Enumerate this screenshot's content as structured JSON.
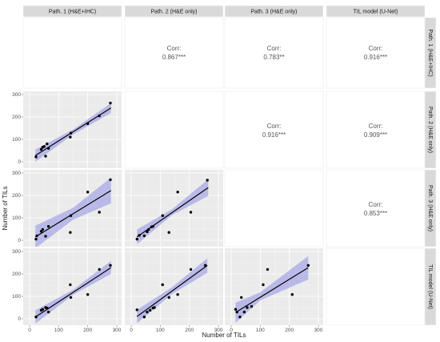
{
  "labels": [
    "Path. 1 (H&E+IHC)",
    "Path. 2 (H&E only)",
    "Path. 3 (H&E only)",
    "TIL model (U-Net)"
  ],
  "axis": {
    "xlabel": "Number of TILs",
    "ylabel": "Number of TILs",
    "xticks": [
      0,
      100,
      200,
      300
    ],
    "yticks": [
      0,
      100,
      200,
      300
    ],
    "range": [
      0,
      300
    ]
  },
  "corr_label": "Corr:",
  "colors": {
    "band": "#8f8fe6",
    "panel": "#ebebeb",
    "strip": "#d9d9d9"
  },
  "chart_data": {
    "type": "scatter",
    "title": "",
    "xlabel": "Number of TILs",
    "ylabel": "Number of TILs",
    "xlim": [
      0,
      300
    ],
    "ylim": [
      0,
      300
    ],
    "grid": true,
    "correlations": [
      {
        "row": "Path. 1 (H&E+IHC)",
        "col": "Path. 2 (H&E only)",
        "text": "0.867***"
      },
      {
        "row": "Path. 1 (H&E+IHC)",
        "col": "Path. 3 (H&E only)",
        "text": "0.783**"
      },
      {
        "row": "Path. 1 (H&E+IHC)",
        "col": "TIL model (U-Net)",
        "text": "0.916***"
      },
      {
        "row": "Path. 2 (H&E only)",
        "col": "Path. 3 (H&E only)",
        "text": "0.916***"
      },
      {
        "row": "Path. 2 (H&E only)",
        "col": "TIL model (U-Net)",
        "text": "0.909***"
      },
      {
        "row": "Path. 3 (H&E only)",
        "col": "TIL model (U-Net)",
        "text": "0.853***"
      }
    ],
    "panels": [
      {
        "x_var": "Path. 1 (H&E+IHC)",
        "y_var": "Path. 2 (H&E only)",
        "points": [
          [
            22,
            22
          ],
          [
            40,
            55
          ],
          [
            45,
            65
          ],
          [
            50,
            68
          ],
          [
            55,
            25
          ],
          [
            60,
            80
          ],
          [
            65,
            60
          ],
          [
            140,
            110
          ],
          [
            142,
            128
          ],
          [
            200,
            170
          ],
          [
            240,
            205
          ],
          [
            278,
            262
          ]
        ],
        "fit": [
          [
            20,
            28
          ],
          [
            280,
            240
          ]
        ],
        "band": [
          [
            20,
            0,
            55
          ],
          [
            150,
            122,
            144
          ],
          [
            280,
            218,
            262
          ]
        ]
      },
      {
        "x_var": "Path. 1 (H&E+IHC)",
        "y_var": "Path. 3 (H&E only)",
        "points": [
          [
            22,
            5
          ],
          [
            25,
            20
          ],
          [
            40,
            40
          ],
          [
            45,
            48
          ],
          [
            55,
            18
          ],
          [
            65,
            62
          ],
          [
            140,
            35
          ],
          [
            142,
            110
          ],
          [
            200,
            215
          ],
          [
            240,
            125
          ],
          [
            278,
            270
          ]
        ],
        "fit": [
          [
            20,
            15
          ],
          [
            280,
            222
          ]
        ],
        "band": [
          [
            20,
            -35,
            65
          ],
          [
            150,
            92,
            145
          ],
          [
            280,
            165,
            280
          ]
        ]
      },
      {
        "x_var": "Path. 2 (H&E only)",
        "y_var": "Path. 3 (H&E only)",
        "points": [
          [
            20,
            5
          ],
          [
            28,
            22
          ],
          [
            45,
            20
          ],
          [
            55,
            38
          ],
          [
            60,
            48
          ],
          [
            70,
            60
          ],
          [
            75,
            62
          ],
          [
            108,
            110
          ],
          [
            130,
            35
          ],
          [
            160,
            215
          ],
          [
            205,
            125
          ],
          [
            262,
            268
          ]
        ],
        "fit": [
          [
            20,
            15
          ],
          [
            265,
            235
          ]
        ],
        "band": [
          [
            20,
            -18,
            48
          ],
          [
            140,
            112,
            138
          ],
          [
            265,
            198,
            272
          ]
        ]
      },
      {
        "x_var": "Path. 1 (H&E+IHC)",
        "y_var": "TIL model (U-Net)",
        "points": [
          [
            22,
            8
          ],
          [
            40,
            38
          ],
          [
            45,
            42
          ],
          [
            55,
            50
          ],
          [
            60,
            48
          ],
          [
            65,
            30
          ],
          [
            140,
            152
          ],
          [
            142,
            95
          ],
          [
            200,
            108
          ],
          [
            240,
            220
          ],
          [
            278,
            238
          ]
        ],
        "fit": [
          [
            20,
            8
          ],
          [
            280,
            228
          ]
        ],
        "band": [
          [
            20,
            -22,
            38
          ],
          [
            150,
            107,
            130
          ],
          [
            280,
            200,
            258
          ]
        ]
      },
      {
        "x_var": "Path. 2 (H&E only)",
        "y_var": "TIL model (U-Net)",
        "points": [
          [
            20,
            40
          ],
          [
            45,
            8
          ],
          [
            55,
            30
          ],
          [
            65,
            38
          ],
          [
            75,
            48
          ],
          [
            80,
            50
          ],
          [
            108,
            152
          ],
          [
            130,
            95
          ],
          [
            160,
            108
          ],
          [
            205,
            220
          ],
          [
            255,
            238
          ]
        ],
        "fit": [
          [
            20,
            10
          ],
          [
            262,
            238
          ]
        ],
        "band": [
          [
            20,
            -20,
            40
          ],
          [
            140,
            110,
            140
          ],
          [
            262,
            205,
            270
          ]
        ]
      },
      {
        "x_var": "Path. 3 (H&E only)",
        "y_var": "TIL model (U-Net)",
        "points": [
          [
            15,
            42
          ],
          [
            20,
            30
          ],
          [
            30,
            8
          ],
          [
            35,
            95
          ],
          [
            45,
            30
          ],
          [
            55,
            50
          ],
          [
            70,
            55
          ],
          [
            110,
            152
          ],
          [
            125,
            220
          ],
          [
            210,
            108
          ],
          [
            265,
            238
          ]
        ],
        "fit": [
          [
            15,
            28
          ],
          [
            265,
            228
          ]
        ],
        "band": [
          [
            15,
            -18,
            72
          ],
          [
            100,
            82,
            118
          ],
          [
            265,
            175,
            280
          ]
        ]
      }
    ]
  }
}
